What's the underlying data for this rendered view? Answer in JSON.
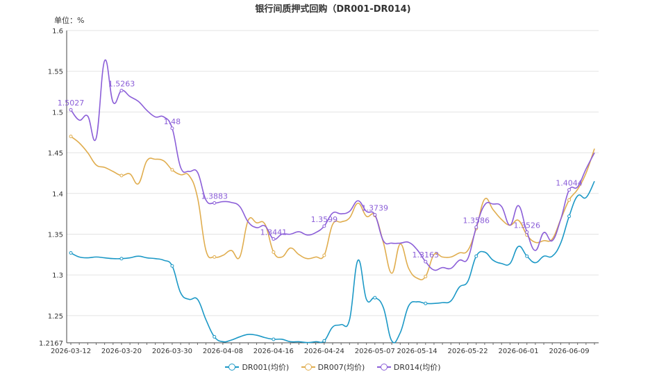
{
  "chart_data": {
    "type": "line",
    "title": "银行间质押式回购（DR001-DR014)",
    "unit_label": "单位：%",
    "ylim": [
      1.2167,
      1.6
    ],
    "yticks": [
      "1.2167",
      "1.25",
      "1.3",
      "1.35",
      "1.4",
      "1.45",
      "1.5",
      "1.55",
      "1.6"
    ],
    "grid": true,
    "legend_position": "bottom-center",
    "x": [
      "2026-03-12",
      "2026-03-13",
      "2026-03-16",
      "2026-03-17",
      "2026-03-18",
      "2026-03-19",
      "2026-03-20",
      "2026-03-23",
      "2026-03-24",
      "2026-03-25",
      "2026-03-26",
      "2026-03-27",
      "2026-03-30",
      "2026-03-31",
      "2026-04-01",
      "2026-04-02",
      "2026-04-03",
      "2026-04-07",
      "2026-04-08",
      "2026-04-09",
      "2026-04-10",
      "2026-04-13",
      "2026-04-14",
      "2026-04-15",
      "2026-04-16",
      "2026-04-17",
      "2026-04-20",
      "2026-04-21",
      "2026-04-22",
      "2026-04-23",
      "2026-04-24",
      "2026-04-27",
      "2026-04-28",
      "2026-04-29",
      "2026-04-30",
      "2026-05-06",
      "2026-05-07",
      "2026-05-08",
      "2026-05-11",
      "2026-05-12",
      "2026-05-13",
      "2026-05-14",
      "2026-05-15",
      "2026-05-18",
      "2026-05-19",
      "2026-05-20",
      "2026-05-21",
      "2026-05-22",
      "2026-05-25",
      "2026-05-26",
      "2026-05-27",
      "2026-05-28",
      "2026-05-29",
      "2026-06-01",
      "2026-06-02",
      "2026-06-03",
      "2026-06-04",
      "2026-06-05",
      "2026-06-08",
      "2026-06-09",
      "2026-06-10",
      "2026-06-11",
      "2026-06-12"
    ],
    "x_tick_labels": [
      "2026-03-12",
      "2026-03-20",
      "2026-03-30",
      "2026-04-08",
      "2026-04-16",
      "2026-04-24",
      "2026-05-07",
      "2026-05-14",
      "2026-05-22",
      "2026-06-01",
      "2026-06-09"
    ],
    "series": [
      {
        "name": "DR001(均价)",
        "color": "#1b98c6",
        "values": [
          1.327,
          1.322,
          1.321,
          1.322,
          1.321,
          1.32,
          1.32,
          1.321,
          1.323,
          1.321,
          1.32,
          1.318,
          1.311,
          1.278,
          1.27,
          1.27,
          1.245,
          1.224,
          1.218,
          1.22,
          1.224,
          1.227,
          1.226,
          1.223,
          1.221,
          1.221,
          1.218,
          1.218,
          1.217,
          1.218,
          1.219,
          1.236,
          1.239,
          1.245,
          1.318,
          1.27,
          1.272,
          1.26,
          1.219,
          1.229,
          1.262,
          1.267,
          1.265,
          1.265,
          1.266,
          1.268,
          1.285,
          1.292,
          1.323,
          1.328,
          1.318,
          1.314,
          1.314,
          1.335,
          1.323,
          1.315,
          1.323,
          1.323,
          1.339,
          1.372,
          1.397,
          1.395,
          1.415
        ]
      },
      {
        "name": "DR007(均价)",
        "color": "#e0ad4e",
        "values": [
          1.47,
          1.462,
          1.45,
          1.435,
          1.432,
          1.427,
          1.422,
          1.424,
          1.412,
          1.44,
          1.442,
          1.44,
          1.429,
          1.423,
          1.422,
          1.395,
          1.33,
          1.322,
          1.324,
          1.33,
          1.322,
          1.367,
          1.364,
          1.362,
          1.328,
          1.322,
          1.333,
          1.325,
          1.32,
          1.322,
          1.324,
          1.362,
          1.365,
          1.37,
          1.388,
          1.372,
          1.373,
          1.34,
          1.302,
          1.338,
          1.308,
          1.296,
          1.298,
          1.325,
          1.322,
          1.322,
          1.327,
          1.33,
          1.357,
          1.393,
          1.38,
          1.368,
          1.361,
          1.367,
          1.349,
          1.34,
          1.342,
          1.344,
          1.368,
          1.392,
          1.405,
          1.425,
          1.455
        ]
      },
      {
        "name": "DR014(均价)",
        "color": "#8b5ed8",
        "values": [
          1.5027,
          1.49,
          1.495,
          1.468,
          1.563,
          1.512,
          1.5263,
          1.519,
          1.513,
          1.502,
          1.494,
          1.494,
          1.48,
          1.432,
          1.427,
          1.426,
          1.392,
          1.3883,
          1.39,
          1.389,
          1.384,
          1.365,
          1.358,
          1.36,
          1.3441,
          1.35,
          1.35,
          1.353,
          1.349,
          1.352,
          1.3599,
          1.376,
          1.375,
          1.378,
          1.391,
          1.378,
          1.3739,
          1.342,
          1.339,
          1.339,
          1.34,
          1.331,
          1.3163,
          1.306,
          1.309,
          1.308,
          1.318,
          1.32,
          1.3586,
          1.386,
          1.387,
          1.384,
          1.361,
          1.385,
          1.3526,
          1.33,
          1.352,
          1.342,
          1.368,
          1.4044,
          1.408,
          1.43,
          1.45
        ]
      }
    ],
    "data_labels": [
      {
        "series": 2,
        "index": 0,
        "text": "1.5027"
      },
      {
        "series": 2,
        "index": 6,
        "text": "1.5263"
      },
      {
        "series": 2,
        "index": 12,
        "text": "1.48"
      },
      {
        "series": 2,
        "index": 17,
        "text": "1.3883"
      },
      {
        "series": 2,
        "index": 24,
        "text": "1.3441"
      },
      {
        "series": 2,
        "index": 30,
        "text": "1.3599"
      },
      {
        "series": 2,
        "index": 36,
        "text": "1.3739"
      },
      {
        "series": 2,
        "index": 42,
        "text": "1.3163"
      },
      {
        "series": 2,
        "index": 48,
        "text": "1.3586"
      },
      {
        "series": 2,
        "index": 54,
        "text": "1.3526"
      },
      {
        "series": 2,
        "index": 59,
        "text": "1.4044"
      }
    ],
    "marker_indices": [
      0,
      6,
      12,
      17,
      24,
      30,
      36,
      42,
      48,
      54,
      59
    ]
  }
}
